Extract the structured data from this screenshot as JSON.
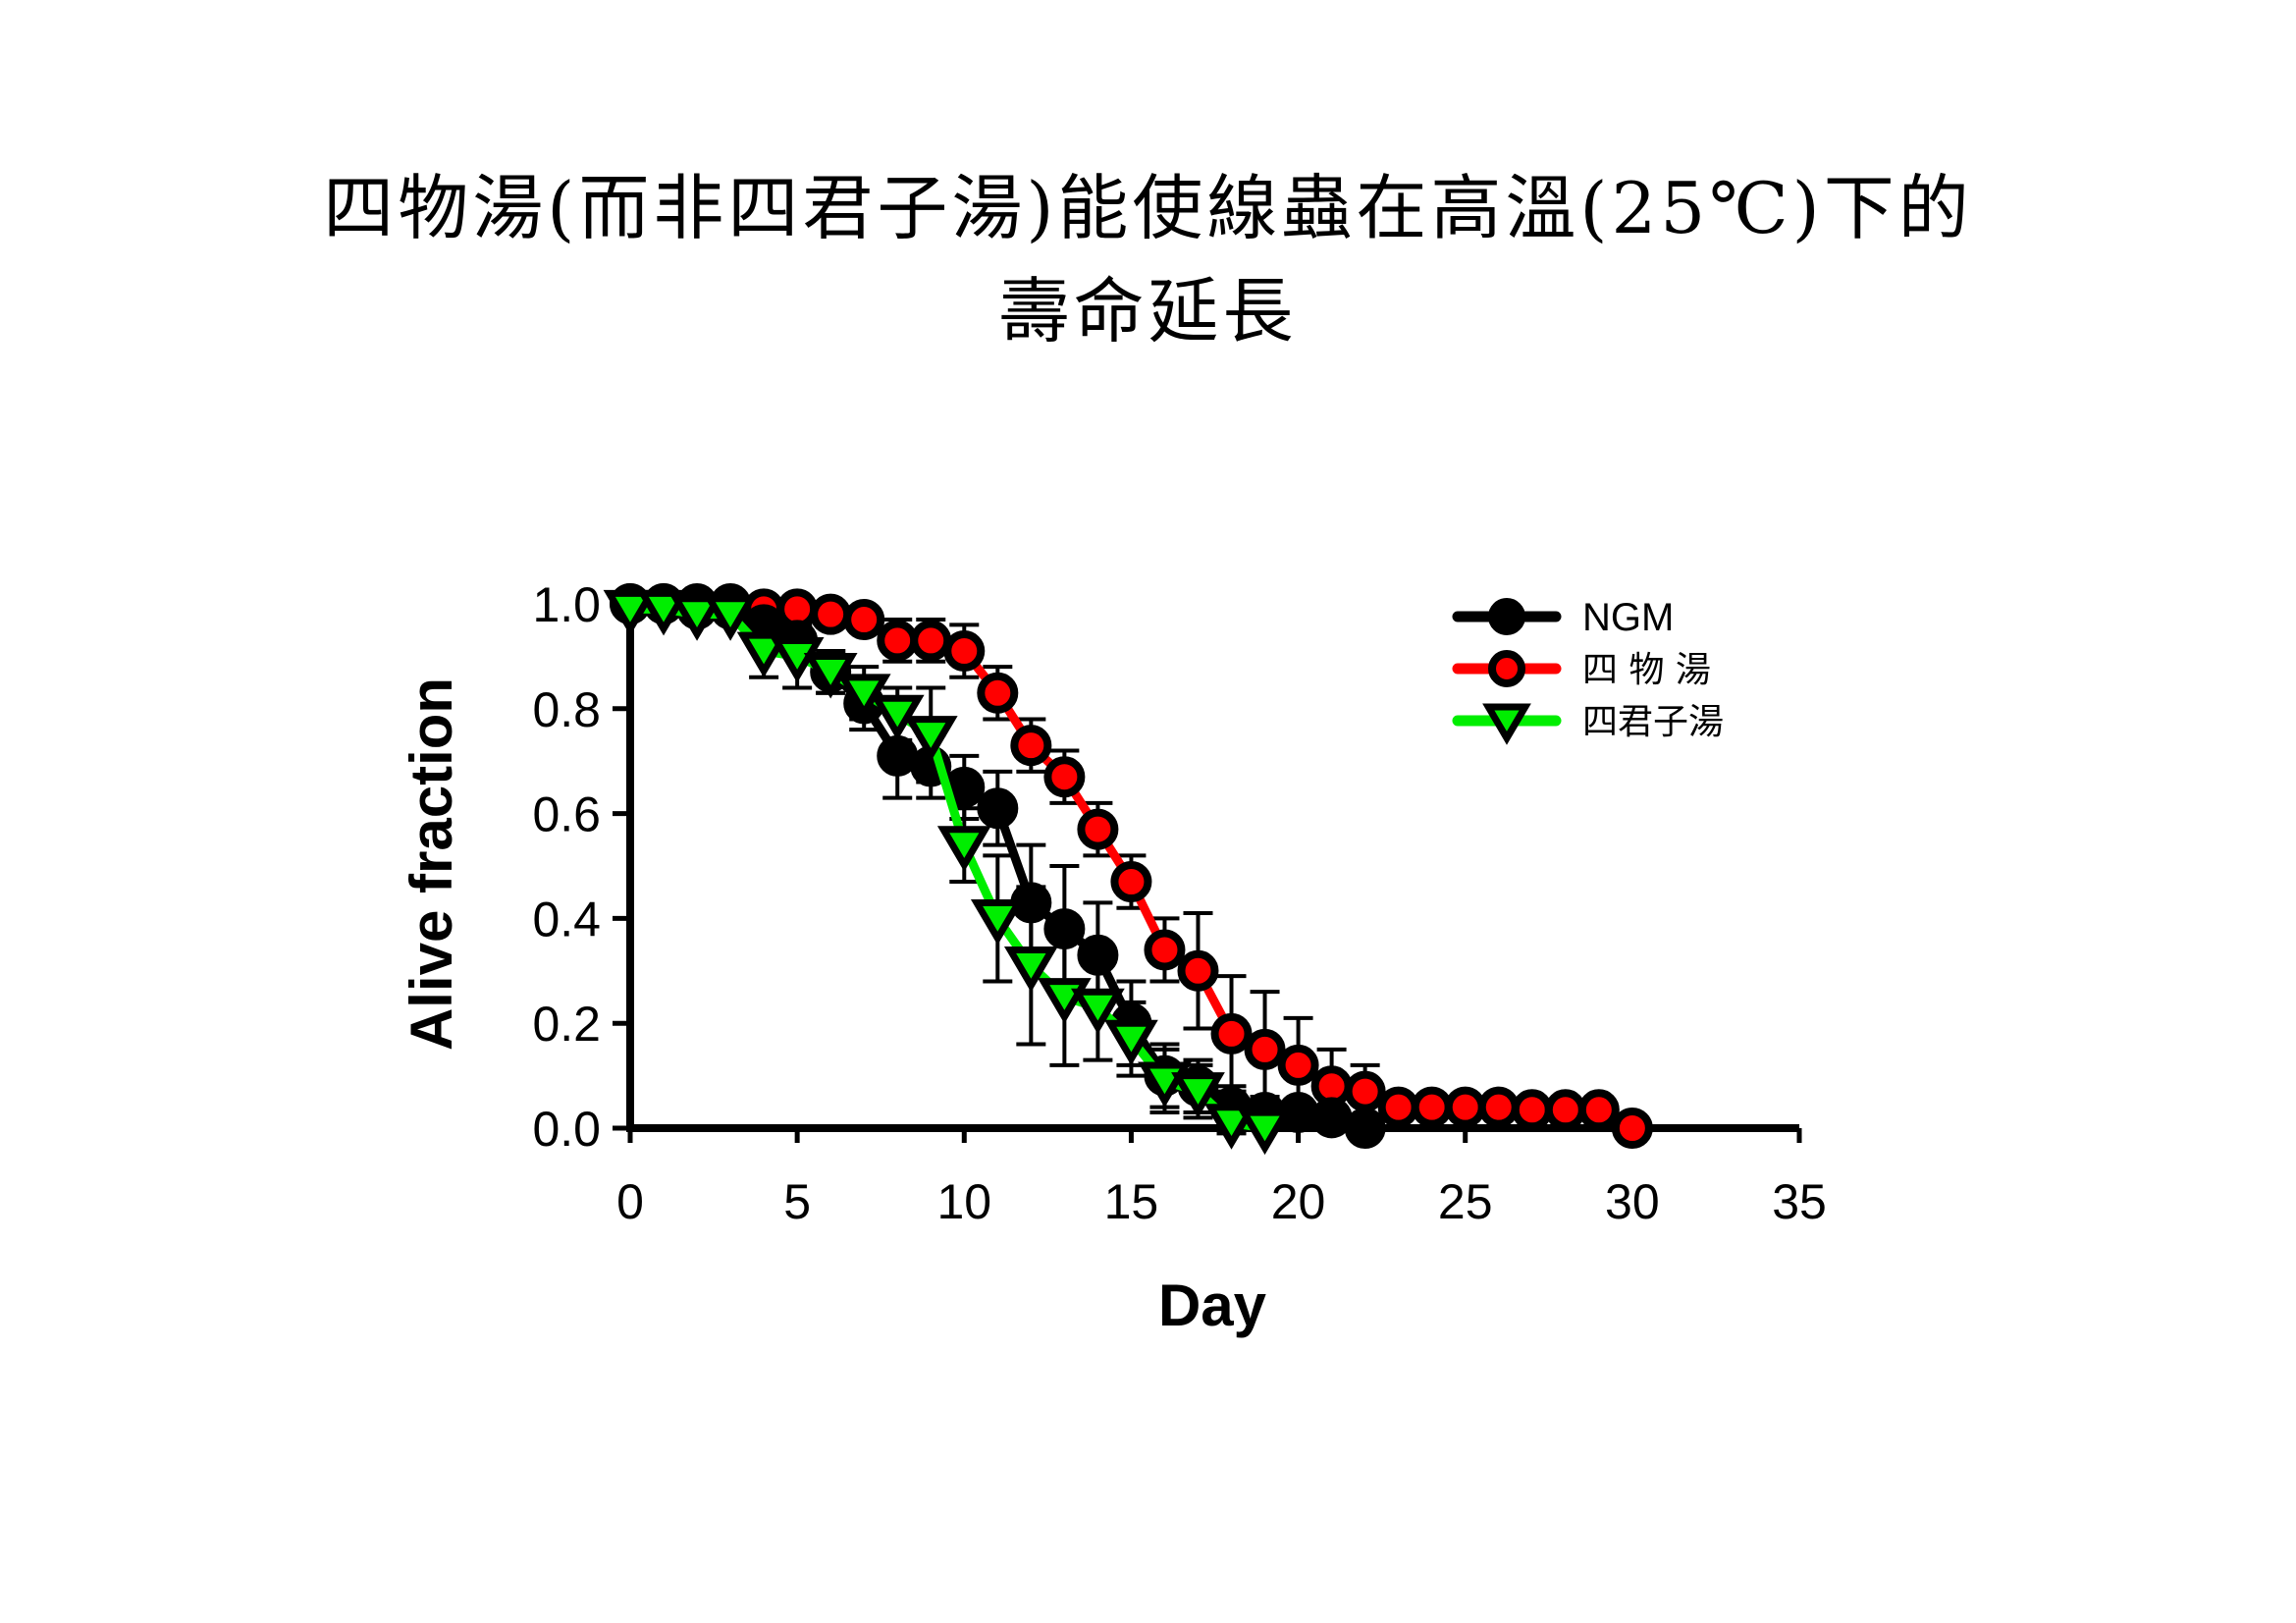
{
  "chart_data": {
    "type": "line",
    "title_line1": "四物湯(而非四君子湯)能使線蟲在高溫(25℃)下的",
    "title_line2": "壽命延長",
    "xlabel": "Day",
    "ylabel": "Alive fraction",
    "xlim": [
      0,
      35
    ],
    "ylim": [
      0,
      1.0
    ],
    "xticks": [
      0,
      5,
      10,
      15,
      20,
      25,
      30,
      35
    ],
    "yticks": [
      "0.0",
      "0.2",
      "0.4",
      "0.6",
      "0.8",
      "1.0"
    ],
    "legend_position": "top-right",
    "series": [
      {
        "name": "NGM",
        "line_color": "#000000",
        "fill_color": "#000000",
        "marker": "circle",
        "x": [
          0,
          1,
          2,
          3,
          4,
          5,
          6,
          7,
          8,
          9,
          10,
          11,
          12,
          13,
          14,
          15,
          16,
          17,
          18,
          19,
          20,
          21,
          22
        ],
        "y": [
          1.0,
          1.0,
          0.99,
          0.99,
          0.96,
          0.93,
          0.87,
          0.81,
          0.71,
          0.69,
          0.65,
          0.61,
          0.43,
          0.38,
          0.33,
          0.2,
          0.1,
          0.08,
          0.04,
          0.03,
          0.03,
          0.02,
          0.0
        ],
        "err": [
          0,
          0,
          0,
          0,
          0.02,
          0.03,
          0.04,
          0.05,
          0.08,
          0.06,
          0.06,
          0.07,
          0.11,
          0.12,
          0.1,
          0.08,
          0.06,
          0.05,
          0.04,
          0.03,
          0.02,
          0.02,
          0
        ]
      },
      {
        "name": "四 物 湯",
        "line_color": "#ff0000",
        "fill_color": "#ff0000",
        "marker": "circle",
        "x": [
          0,
          1,
          2,
          3,
          4,
          5,
          6,
          7,
          8,
          9,
          10,
          11,
          12,
          13,
          14,
          15,
          16,
          17,
          18,
          19,
          20,
          21,
          22,
          23,
          24,
          25,
          26,
          27,
          28,
          29,
          30
        ],
        "y": [
          1.0,
          1.0,
          1.0,
          1.0,
          0.99,
          0.99,
          0.98,
          0.97,
          0.93,
          0.93,
          0.91,
          0.83,
          0.73,
          0.67,
          0.57,
          0.47,
          0.34,
          0.3,
          0.18,
          0.15,
          0.12,
          0.08,
          0.07,
          0.04,
          0.04,
          0.04,
          0.04,
          0.035,
          0.035,
          0.035,
          0.0
        ],
        "err": [
          0,
          0,
          0,
          0,
          0,
          0,
          0,
          0,
          0.04,
          0.04,
          0.05,
          0.05,
          0.05,
          0.05,
          0.05,
          0.05,
          0.06,
          0.11,
          0.11,
          0.11,
          0.09,
          0.07,
          0.05,
          0,
          0,
          0,
          0,
          0,
          0,
          0,
          0
        ]
      },
      {
        "name": "四君子湯",
        "line_color": "#00ee00",
        "fill_color": "#00ee00",
        "marker": "triangle-down",
        "x": [
          0,
          1,
          2,
          3,
          4,
          5,
          6,
          7,
          8,
          9,
          10,
          11,
          12,
          13,
          14,
          15,
          16,
          17,
          18,
          19
        ],
        "y": [
          0.99,
          0.99,
          0.98,
          0.98,
          0.91,
          0.9,
          0.87,
          0.83,
          0.79,
          0.75,
          0.54,
          0.4,
          0.31,
          0.25,
          0.23,
          0.17,
          0.09,
          0.07,
          0.01,
          0.0
        ],
        "err": [
          0,
          0,
          0,
          0,
          0.05,
          0.06,
          0.04,
          0.05,
          0.05,
          0.09,
          0.07,
          0.12,
          0.15,
          0.13,
          0.1,
          0.07,
          0.06,
          0.05,
          0.02,
          0
        ]
      }
    ]
  }
}
